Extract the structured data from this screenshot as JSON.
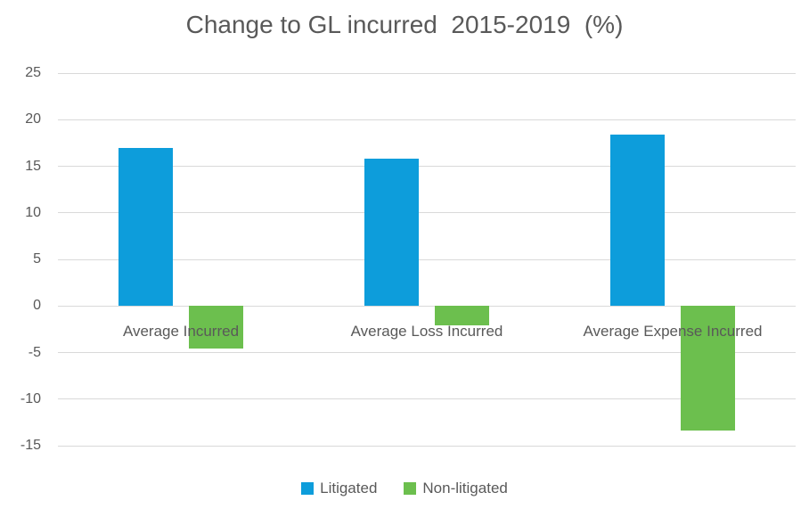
{
  "chart_data": {
    "type": "bar",
    "title": "Change to GL incurred  2015-2019  (%)",
    "categories": [
      "Average Incurred",
      "Average Loss Incurred",
      "Average Expense Incurred"
    ],
    "series": [
      {
        "name": "Litigated",
        "color": "#0d9ddb",
        "values": [
          17,
          15.8,
          18.4
        ]
      },
      {
        "name": "Non-litigated",
        "color": "#6cbf4e",
        "values": [
          -4.6,
          -2.1,
          -13.4
        ]
      }
    ],
    "ylim": [
      -15,
      25
    ],
    "yticks": [
      25,
      20,
      15,
      10,
      5,
      0,
      -5,
      -10,
      -15
    ],
    "grid": true,
    "legend_position": "bottom"
  },
  "colors": {
    "background": "#ffffff",
    "gridline": "#d9d9d9",
    "axis_text": "#595959",
    "title_text": "#595959"
  }
}
